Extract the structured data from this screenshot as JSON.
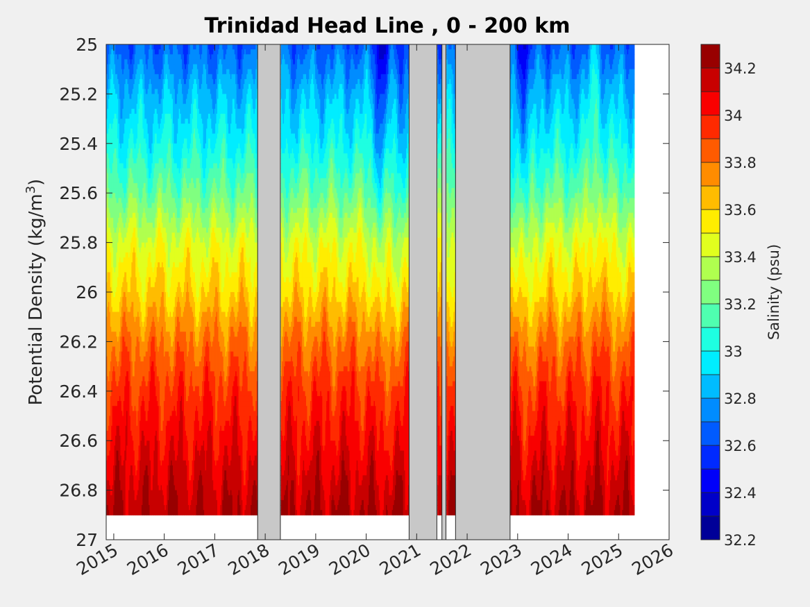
{
  "chart_data": {
    "type": "heatmap",
    "title": "Trinidad Head Line , 0 - 200 km",
    "ylabel": {
      "prefix": "Potential Density (kg/m",
      "sup": "3",
      "suffix": ")"
    },
    "xlabel": "",
    "xlim": [
      2014.85,
      2026.0
    ],
    "ylim": [
      25.0,
      27.0
    ],
    "y_reversed": true,
    "xticks": [
      2015,
      2016,
      2017,
      2018,
      2019,
      2020,
      2021,
      2022,
      2023,
      2024,
      2025,
      2026
    ],
    "xtick_labels": [
      "2015",
      "2016",
      "2017",
      "2018",
      "2019",
      "2020",
      "2021",
      "2022",
      "2023",
      "2024",
      "2025",
      "2026"
    ],
    "yticks": [
      25,
      25.2,
      25.4,
      25.6,
      25.8,
      26,
      26.2,
      26.4,
      26.6,
      26.8,
      27
    ],
    "ytick_labels": [
      "25",
      "25.2",
      "25.4",
      "25.6",
      "25.8",
      "26",
      "26.2",
      "26.4",
      "26.6",
      "26.8",
      "27"
    ],
    "colorbar": {
      "label": "Salinity (psu)",
      "range": [
        32.2,
        34.3
      ],
      "step": 0.1,
      "ticks": [
        32.2,
        32.4,
        32.6,
        32.8,
        33.0,
        33.2,
        33.4,
        33.6,
        33.8,
        34.0,
        34.2
      ],
      "tick_labels": [
        "32.2",
        "32.4",
        "32.6",
        "32.8",
        "33",
        "33.2",
        "33.4",
        "33.6",
        "33.8",
        "34",
        "34.2"
      ],
      "colormap": "jet"
    },
    "no_data_gaps": [
      {
        "from": 2017.85,
        "to": 2018.3
      },
      {
        "from": 2020.85,
        "to": 2021.4
      },
      {
        "from": 2021.5,
        "to": 2021.58
      },
      {
        "from": 2021.77,
        "to": 2022.85
      }
    ],
    "data_end": 2025.3,
    "salinity_profile": [
      {
        "density": 25.0,
        "salinity": 32.65
      },
      {
        "density": 25.2,
        "salinity": 32.85
      },
      {
        "density": 25.4,
        "salinity": 33.0
      },
      {
        "density": 25.6,
        "salinity": 33.2
      },
      {
        "density": 25.8,
        "salinity": 33.45
      },
      {
        "density": 26.0,
        "salinity": 33.6
      },
      {
        "density": 26.2,
        "salinity": 33.8
      },
      {
        "density": 26.4,
        "salinity": 33.95
      },
      {
        "density": 26.6,
        "salinity": 34.05
      },
      {
        "density": 26.8,
        "salinity": 34.15
      },
      {
        "density": 26.9,
        "salinity": 34.2
      }
    ],
    "deepest_density": 26.9,
    "fresh_events": [
      {
        "date": 2020.3,
        "salinity_anomaly": -0.3
      },
      {
        "date": 2020.65,
        "salinity_anomaly": -0.15
      },
      {
        "date": 2023.15,
        "salinity_anomaly": -0.25
      },
      {
        "date": 2024.55,
        "salinity_anomaly": 0.2
      }
    ],
    "colors": {
      "gap": "#c8c8c8",
      "nodata": "#ffffff",
      "background": "#f0f0f0",
      "axis": "#262626"
    }
  }
}
